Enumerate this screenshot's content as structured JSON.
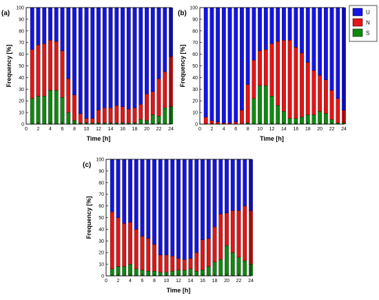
{
  "chart_data": [
    {
      "type": "bar",
      "stacked": true,
      "panel_label": "(a)",
      "xlabel": "Time [h]",
      "ylabel": "Frequency [%]",
      "xlim": [
        0,
        24
      ],
      "ylim": [
        0,
        100
      ],
      "xticks": [
        "0",
        "2",
        "4",
        "6",
        "8",
        "10",
        "12",
        "14",
        "16",
        "18",
        "20",
        "22",
        "24"
      ],
      "yticks": [
        "0",
        "10",
        "20",
        "30",
        "40",
        "50",
        "60",
        "70",
        "80",
        "90",
        "100"
      ],
      "x": [
        1,
        2,
        3,
        4,
        5,
        6,
        7,
        8,
        9,
        10,
        11,
        12,
        13,
        14,
        15,
        16,
        17,
        18,
        19,
        20,
        21,
        22,
        23,
        24
      ],
      "series": [
        {
          "name": "S",
          "values": [
            22,
            24,
            24,
            29,
            29,
            23,
            10,
            3,
            1,
            1,
            1,
            1,
            1,
            1,
            1,
            1,
            1,
            1,
            4,
            3,
            8,
            7,
            14,
            15
          ]
        },
        {
          "name": "N",
          "values": [
            42,
            44,
            45,
            43,
            42,
            40,
            29,
            22,
            8,
            4,
            4,
            11,
            13,
            13,
            15,
            14,
            12,
            13,
            13,
            23,
            20,
            32,
            31,
            43
          ]
        },
        {
          "name": "U",
          "values": [
            36,
            32,
            31,
            28,
            29,
            37,
            61,
            75,
            91,
            95,
            95,
            88,
            86,
            86,
            84,
            85,
            87,
            86,
            83,
            74,
            72,
            61,
            55,
            42
          ]
        }
      ],
      "legend": "top-right"
    },
    {
      "type": "bar",
      "stacked": true,
      "panel_label": "(b)",
      "xlabel": "Time [h]",
      "ylabel": "Frequency [%]",
      "xlim": [
        0,
        24
      ],
      "ylim": [
        0,
        100
      ],
      "xticks": [
        "0",
        "2",
        "4",
        "6",
        "8",
        "10",
        "12",
        "14",
        "16",
        "18",
        "20",
        "22",
        "24"
      ],
      "yticks": [
        "0",
        "10",
        "20",
        "30",
        "40",
        "50",
        "60",
        "70",
        "80",
        "90",
        "100"
      ],
      "x": [
        1,
        2,
        3,
        4,
        5,
        6,
        7,
        8,
        9,
        10,
        11,
        12,
        13,
        14,
        15,
        16,
        17,
        18,
        19,
        20,
        21,
        22,
        23,
        24
      ],
      "series": [
        {
          "name": "S",
          "values": [
            0,
            0,
            0,
            0,
            0,
            0,
            0,
            1,
            22,
            33,
            33,
            24,
            16,
            11,
            5,
            5,
            6,
            8,
            8,
            11,
            9,
            4,
            1,
            1
          ]
        },
        {
          "name": "N",
          "values": [
            6,
            3,
            2,
            1,
            1,
            2,
            12,
            33,
            33,
            30,
            31,
            45,
            55,
            61,
            67,
            61,
            55,
            45,
            38,
            31,
            29,
            25,
            21,
            11
          ]
        },
        {
          "name": "U",
          "values": [
            94,
            97,
            98,
            99,
            99,
            98,
            88,
            66,
            45,
            37,
            36,
            31,
            29,
            28,
            28,
            34,
            39,
            47,
            54,
            58,
            62,
            71,
            78,
            88
          ]
        }
      ]
    },
    {
      "type": "bar",
      "stacked": true,
      "panel_label": "(c)",
      "xlabel": "Time [h]",
      "ylabel": "Frequency [%]",
      "xlim": [
        0,
        24
      ],
      "ylim": [
        0,
        100
      ],
      "xticks": [
        "0",
        "2",
        "4",
        "6",
        "8",
        "10",
        "12",
        "14",
        "16",
        "18",
        "20",
        "22",
        "24"
      ],
      "yticks": [
        "0",
        "10",
        "20",
        "30",
        "40",
        "50",
        "60",
        "70",
        "80",
        "90",
        "100"
      ],
      "x": [
        1,
        2,
        3,
        4,
        5,
        6,
        7,
        8,
        9,
        10,
        11,
        12,
        13,
        14,
        15,
        16,
        17,
        18,
        19,
        20,
        21,
        22,
        23,
        24
      ],
      "series": [
        {
          "name": "S",
          "values": [
            6,
            8,
            8,
            10,
            6,
            5,
            4,
            4,
            3,
            3,
            4,
            5,
            5,
            6,
            4,
            5,
            8,
            12,
            14,
            26,
            20,
            16,
            13,
            10
          ]
        },
        {
          "name": "N",
          "values": [
            49,
            42,
            37,
            36,
            34,
            29,
            28,
            23,
            15,
            15,
            13,
            10,
            9,
            9,
            16,
            26,
            24,
            30,
            39,
            28,
            36,
            40,
            47,
            46
          ]
        },
        {
          "name": "U",
          "values": [
            45,
            50,
            55,
            54,
            60,
            66,
            68,
            73,
            82,
            82,
            83,
            85,
            86,
            85,
            80,
            69,
            68,
            58,
            47,
            46,
            44,
            44,
            40,
            44
          ]
        }
      ]
    }
  ],
  "legend": {
    "items": [
      {
        "label": "U",
        "color": "#1414e6"
      },
      {
        "label": "N",
        "color": "#e61414"
      },
      {
        "label": "S",
        "color": "#0f8a0f"
      }
    ]
  },
  "colors": {
    "U": "#1414e6",
    "N": "#e61414",
    "S": "#0f8a0f"
  }
}
